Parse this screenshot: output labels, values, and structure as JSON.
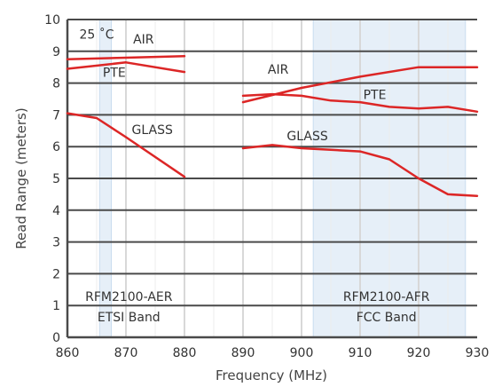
{
  "chart_data": {
    "type": "line",
    "xlabel": "Frequency (MHz)",
    "ylabel": "Read Range (meters)",
    "xlim": [
      860,
      930
    ],
    "ylim": [
      0,
      10
    ],
    "x_ticks": [
      "860",
      "870",
      "880",
      "890",
      "900",
      "910",
      "920",
      "930"
    ],
    "y_ticks": [
      "0",
      "1",
      "2",
      "3",
      "4",
      "5",
      "6",
      "7",
      "8",
      "9",
      "10"
    ],
    "grid": "horizontal major lines dark, vertical minor lines light",
    "line_color": "#dc2626",
    "band_color": "#e6eff8",
    "band_edge_color": "#c9dcef",
    "bands": [
      {
        "x0": 865.5,
        "x1": 867.5,
        "name": "RFM2100-AER",
        "sublabel": "ETSI Band"
      },
      {
        "x0": 902,
        "x1": 928,
        "name": "RFM2100-AFR",
        "sublabel": "FCC Band"
      }
    ],
    "series": [
      {
        "name": "AIR",
        "x": [
          860,
          870,
          880
        ],
        "y": [
          8.75,
          8.8,
          8.85
        ]
      },
      {
        "name": "PTE",
        "x": [
          860,
          870,
          880
        ],
        "y": [
          8.45,
          8.65,
          8.35
        ]
      },
      {
        "name": "GLASS",
        "x": [
          860,
          865,
          870,
          880
        ],
        "y": [
          7.05,
          6.9,
          6.3,
          5.05
        ]
      },
      {
        "name": "AIR",
        "x": [
          890,
          900,
          910,
          920,
          930
        ],
        "y": [
          7.4,
          7.85,
          8.2,
          8.5,
          8.5
        ]
      },
      {
        "name": "PTE",
        "x": [
          890,
          895,
          900,
          905,
          910,
          915,
          920,
          925,
          930
        ],
        "y": [
          7.6,
          7.65,
          7.6,
          7.45,
          7.4,
          7.25,
          7.2,
          7.25,
          7.1
        ]
      },
      {
        "name": "GLASS",
        "x": [
          890,
          895,
          900,
          905,
          910,
          915,
          920,
          925,
          930
        ],
        "y": [
          5.95,
          6.05,
          5.95,
          5.9,
          5.85,
          5.6,
          5.0,
          4.5,
          4.45
        ]
      }
    ],
    "annotations": [
      {
        "text": "25 ˚C",
        "x": 865,
        "y": 9.4
      },
      {
        "text": "AIR",
        "x": 873,
        "y": 9.25
      },
      {
        "text": "PTE",
        "x": 868,
        "y": 8.2
      },
      {
        "text": "GLASS",
        "x": 874.5,
        "y": 6.4
      },
      {
        "text": "AIR",
        "x": 896,
        "y": 8.3
      },
      {
        "text": "PTE",
        "x": 912.5,
        "y": 7.5
      },
      {
        "text": "GLASS",
        "x": 901,
        "y": 6.2
      },
      {
        "text": "RFM2100-AER",
        "x": 870.5,
        "y": 1.15
      },
      {
        "text": "ETSI Band",
        "x": 870.5,
        "y": 0.5
      },
      {
        "text": "RFM2100-AFR",
        "x": 914.5,
        "y": 1.15
      },
      {
        "text": "FCC Band",
        "x": 914.5,
        "y": 0.5
      }
    ]
  }
}
